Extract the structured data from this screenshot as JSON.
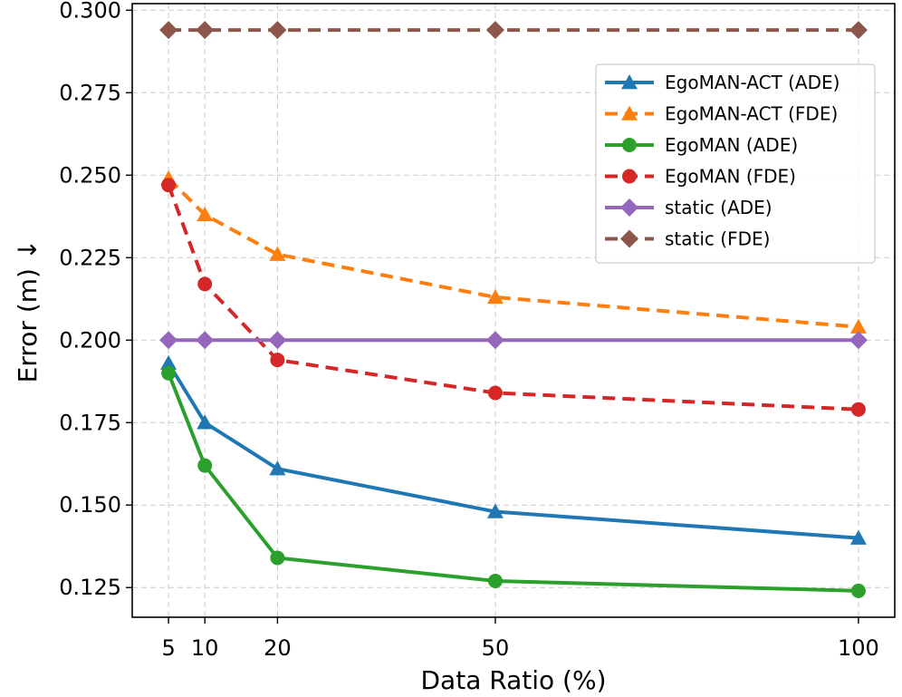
{
  "chart_data": {
    "type": "line",
    "xlabel": "Data Ratio (%)",
    "ylabel": "Error (m) ↓",
    "x": [
      5,
      10,
      20,
      50,
      100
    ],
    "x_ticks": [
      5,
      10,
      20,
      50,
      100
    ],
    "x_tick_labels": [
      "5",
      "10",
      "20",
      "50",
      "100"
    ],
    "y_ticks": [
      0.125,
      0.15,
      0.175,
      0.2,
      0.225,
      0.25,
      0.275,
      0.3
    ],
    "y_tick_labels": [
      "0.125",
      "0.150",
      "0.175",
      "0.200",
      "0.225",
      "0.250",
      "0.275",
      "0.300"
    ],
    "xlim": [
      0,
      105
    ],
    "ylim": [
      0.116,
      0.302
    ],
    "grid": true,
    "legend_position": "top-right",
    "series": [
      {
        "name": "EgoMAN-ACT (ADE)",
        "color": "#1f77b4",
        "marker": "triangle",
        "dashed": false,
        "values": [
          0.193,
          0.175,
          0.161,
          0.148,
          0.14
        ]
      },
      {
        "name": "EgoMAN-ACT (FDE)",
        "color": "#ff7f0e",
        "marker": "triangle",
        "dashed": true,
        "values": [
          0.249,
          0.238,
          0.226,
          0.213,
          0.204
        ]
      },
      {
        "name": "EgoMAN (ADE)",
        "color": "#2ca02c",
        "marker": "circle",
        "dashed": false,
        "values": [
          0.19,
          0.162,
          0.134,
          0.127,
          0.124
        ]
      },
      {
        "name": "EgoMAN (FDE)",
        "color": "#d62728",
        "marker": "circle",
        "dashed": true,
        "values": [
          0.247,
          0.217,
          0.194,
          0.184,
          0.179
        ]
      },
      {
        "name": "static (ADE)",
        "color": "#9467bd",
        "marker": "diamond",
        "dashed": false,
        "values": [
          0.2,
          0.2,
          0.2,
          0.2,
          0.2
        ]
      },
      {
        "name": "static (FDE)",
        "color": "#8c564b",
        "marker": "diamond",
        "dashed": true,
        "values": [
          0.294,
          0.294,
          0.294,
          0.294,
          0.294
        ]
      }
    ]
  }
}
